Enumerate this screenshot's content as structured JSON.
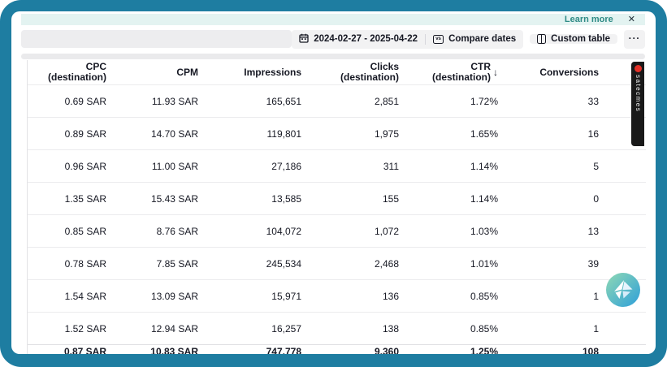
{
  "banner": {
    "learn_more_label": "Learn more",
    "close_label": "✕"
  },
  "toolbar": {
    "date_range_label": "2024-02-27 - 2025-04-22",
    "compare_dates_label": "Compare dates",
    "compare_icon_text": "vs",
    "custom_table_label": "Custom table",
    "more_label": "···"
  },
  "table": {
    "sort_arrow": "↓",
    "columns": [
      {
        "line1": "CPC (destination)",
        "line2": "",
        "sorted": false
      },
      {
        "line1": "CPM",
        "line2": "",
        "sorted": false
      },
      {
        "line1": "Impressions",
        "line2": "",
        "sorted": false
      },
      {
        "line1": "Clicks",
        "line2": "(destination)",
        "sorted": false
      },
      {
        "line1": "CTR",
        "line2": "(destination)",
        "sorted": true,
        "sort_direction": "desc"
      },
      {
        "line1": "Conversions",
        "line2": "",
        "sorted": false
      }
    ],
    "rows": [
      [
        "0.69 SAR",
        "11.93 SAR",
        "165,651",
        "2,851",
        "1.72%",
        "33"
      ],
      [
        "0.89 SAR",
        "14.70 SAR",
        "119,801",
        "1,975",
        "1.65%",
        "16"
      ],
      [
        "0.96 SAR",
        "11.00 SAR",
        "27,186",
        "311",
        "1.14%",
        "5"
      ],
      [
        "1.35 SAR",
        "15.43 SAR",
        "13,585",
        "155",
        "1.14%",
        "0"
      ],
      [
        "0.85 SAR",
        "8.76 SAR",
        "104,072",
        "1,072",
        "1.03%",
        "13"
      ],
      [
        "0.78 SAR",
        "7.85 SAR",
        "245,534",
        "2,468",
        "1.01%",
        "39"
      ],
      [
        "1.54 SAR",
        "13.09 SAR",
        "15,971",
        "136",
        "0.85%",
        "1"
      ],
      [
        "1.52 SAR",
        "12.94 SAR",
        "16,257",
        "138",
        "0.85%",
        "1"
      ]
    ],
    "totals": [
      "0.87 SAR",
      "10.83 SAR",
      "747,778",
      "9,360",
      "1.25%",
      "108"
    ]
  },
  "side_tab": {
    "text": "satecmes"
  },
  "colors": {
    "frame": "#1e7da1",
    "banner_bg": "#e3f3f1",
    "link_teal": "#2f8b86",
    "button_bg": "#f2f2f3",
    "text": "#161823",
    "row_border": "#ebebed"
  }
}
